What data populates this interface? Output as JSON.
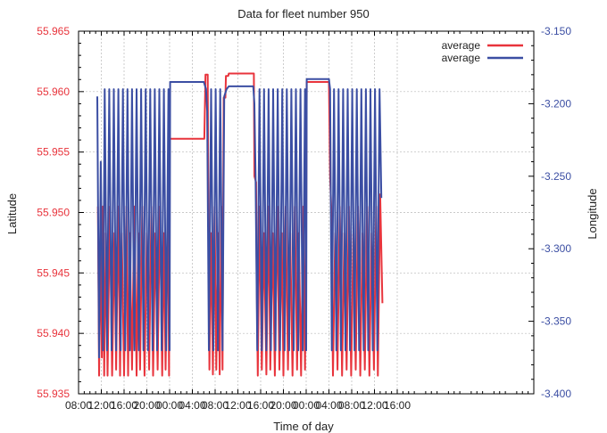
{
  "chart_data": {
    "type": "line",
    "title": "Data for fleet number 950",
    "xlabel": "Time of day",
    "ylabel_left": "Latitude",
    "ylabel_right": "Longitude",
    "x_unit": "hours since first 08:00",
    "x_range": [
      0,
      80
    ],
    "x_ticks": [
      {
        "v": 0,
        "label": "08:00"
      },
      {
        "v": 4,
        "label": "12:00"
      },
      {
        "v": 8,
        "label": "16:00"
      },
      {
        "v": 12,
        "label": "20:00"
      },
      {
        "v": 16,
        "label": "00:00"
      },
      {
        "v": 20,
        "label": "04:00"
      },
      {
        "v": 24,
        "label": "08:00"
      },
      {
        "v": 28,
        "label": "12:00"
      },
      {
        "v": 32,
        "label": "16:00"
      },
      {
        "v": 36,
        "label": "20:00"
      },
      {
        "v": 40,
        "label": "00:00"
      },
      {
        "v": 44,
        "label": "04:00"
      },
      {
        "v": 48,
        "label": "08:00"
      },
      {
        "v": 52,
        "label": "12:00"
      },
      {
        "v": 56,
        "label": "16:00"
      }
    ],
    "y_left_range": [
      55.935,
      55.965
    ],
    "y_left_ticks": [
      "55.935",
      "55.940",
      "55.945",
      "55.950",
      "55.955",
      "55.960",
      "55.965"
    ],
    "y_right_range": [
      -3.4,
      -3.15
    ],
    "y_right_ticks": [
      "-3.400",
      "-3.350",
      "-3.300",
      "-3.250",
      "-3.200",
      "-3.150"
    ],
    "grid": true,
    "legend_position": "top-right",
    "colors": {
      "latitude": "#e8343c",
      "longitude": "#3b4ea3",
      "axis_left": "#e8343c",
      "axis_right": "#3b4ea3"
    },
    "series": [
      {
        "name": "average",
        "axis": "left",
        "color": "#e8343c",
        "points": [
          [
            3.4,
            55.9505
          ],
          [
            3.6,
            55.9365
          ],
          [
            3.9,
            55.9483
          ],
          [
            4.1,
            55.938
          ],
          [
            4.3,
            55.9505
          ],
          [
            4.5,
            55.9365
          ],
          [
            4.8,
            55.9483
          ],
          [
            5.1,
            55.9365
          ],
          [
            5.5,
            55.9505
          ],
          [
            5.9,
            55.9365
          ],
          [
            6.3,
            55.9483
          ],
          [
            6.6,
            55.937
          ],
          [
            7.0,
            55.9505
          ],
          [
            7.3,
            55.9365
          ],
          [
            7.6,
            55.9483
          ],
          [
            8.0,
            55.9365
          ],
          [
            8.4,
            55.9505
          ],
          [
            8.7,
            55.9365
          ],
          [
            9.0,
            55.9483
          ],
          [
            9.4,
            55.937
          ],
          [
            9.8,
            55.9505
          ],
          [
            10.2,
            55.9365
          ],
          [
            10.5,
            55.9483
          ],
          [
            10.8,
            55.937
          ],
          [
            11.2,
            55.9505
          ],
          [
            11.6,
            55.9365
          ],
          [
            12.0,
            55.9483
          ],
          [
            12.4,
            55.937
          ],
          [
            12.8,
            55.9505
          ],
          [
            13.1,
            55.9365
          ],
          [
            13.5,
            55.9483
          ],
          [
            13.9,
            55.937
          ],
          [
            14.3,
            55.9505
          ],
          [
            14.7,
            55.9365
          ],
          [
            15.0,
            55.9483
          ],
          [
            15.3,
            55.937
          ],
          [
            15.7,
            55.9505
          ],
          [
            15.9,
            55.9365
          ],
          [
            16.0,
            55.9561
          ],
          [
            22.1,
            55.9561
          ],
          [
            22.3,
            55.9614
          ],
          [
            22.7,
            55.9614
          ],
          [
            22.8,
            55.9497
          ],
          [
            23.0,
            55.937
          ],
          [
            23.3,
            55.9483
          ],
          [
            23.6,
            55.9366
          ],
          [
            23.9,
            55.9505
          ],
          [
            24.2,
            55.937
          ],
          [
            24.5,
            55.9483
          ],
          [
            24.8,
            55.9366
          ],
          [
            25.1,
            55.9505
          ],
          [
            25.3,
            55.937
          ],
          [
            25.5,
            55.9595
          ],
          [
            25.8,
            55.9595
          ],
          [
            25.9,
            55.9613
          ],
          [
            26.3,
            55.9613
          ],
          [
            26.4,
            55.9615
          ],
          [
            30.8,
            55.9615
          ],
          [
            30.9,
            55.953
          ],
          [
            31.2,
            55.9525
          ],
          [
            31.3,
            55.945
          ],
          [
            31.5,
            55.9365
          ],
          [
            31.8,
            55.9505
          ],
          [
            32.2,
            55.937
          ],
          [
            32.6,
            55.9483
          ],
          [
            33.0,
            55.9366
          ],
          [
            33.4,
            55.9505
          ],
          [
            33.7,
            55.937
          ],
          [
            34.1,
            55.9483
          ],
          [
            34.5,
            55.9365
          ],
          [
            34.9,
            55.9505
          ],
          [
            35.3,
            55.937
          ],
          [
            35.7,
            55.9483
          ],
          [
            36.0,
            55.9365
          ],
          [
            36.4,
            55.9505
          ],
          [
            36.8,
            55.937
          ],
          [
            37.2,
            55.9483
          ],
          [
            37.6,
            55.9365
          ],
          [
            38.0,
            55.9505
          ],
          [
            38.4,
            55.937
          ],
          [
            38.7,
            55.9483
          ],
          [
            39.1,
            55.9365
          ],
          [
            39.5,
            55.9505
          ],
          [
            39.8,
            55.937
          ],
          [
            40.0,
            55.9495
          ],
          [
            40.1,
            55.9608
          ],
          [
            44.0,
            55.9608
          ],
          [
            44.2,
            55.953
          ],
          [
            44.4,
            55.9505
          ],
          [
            44.7,
            55.9365
          ],
          [
            45.1,
            55.9483
          ],
          [
            45.5,
            55.937
          ],
          [
            45.9,
            55.9505
          ],
          [
            46.3,
            55.9365
          ],
          [
            46.7,
            55.9483
          ],
          [
            47.1,
            55.937
          ],
          [
            47.5,
            55.9505
          ],
          [
            47.9,
            55.9365
          ],
          [
            48.3,
            55.9483
          ],
          [
            48.7,
            55.937
          ],
          [
            49.1,
            55.9505
          ],
          [
            49.5,
            55.9365
          ],
          [
            49.9,
            55.9483
          ],
          [
            50.3,
            55.937
          ],
          [
            50.7,
            55.9505
          ],
          [
            51.1,
            55.9365
          ],
          [
            51.5,
            55.9483
          ],
          [
            51.9,
            55.937
          ],
          [
            52.3,
            55.9505
          ],
          [
            52.6,
            55.9365
          ],
          [
            53.0,
            55.9515
          ],
          [
            53.4,
            55.9425
          ]
        ]
      },
      {
        "name": "average",
        "axis": "right",
        "color": "#3b4ea3",
        "points": [
          [
            3.3,
            -3.195
          ],
          [
            3.6,
            -3.375
          ],
          [
            3.9,
            -3.24
          ],
          [
            4.3,
            -3.37
          ],
          [
            4.6,
            -3.19
          ],
          [
            5.0,
            -3.37
          ],
          [
            5.4,
            -3.19
          ],
          [
            5.8,
            -3.37
          ],
          [
            6.2,
            -3.19
          ],
          [
            6.6,
            -3.37
          ],
          [
            7.0,
            -3.19
          ],
          [
            7.4,
            -3.37
          ],
          [
            7.8,
            -3.19
          ],
          [
            8.2,
            -3.37
          ],
          [
            8.6,
            -3.19
          ],
          [
            9.0,
            -3.37
          ],
          [
            9.4,
            -3.19
          ],
          [
            9.8,
            -3.37
          ],
          [
            10.2,
            -3.19
          ],
          [
            10.6,
            -3.37
          ],
          [
            11.0,
            -3.19
          ],
          [
            11.4,
            -3.37
          ],
          [
            11.8,
            -3.19
          ],
          [
            12.2,
            -3.37
          ],
          [
            12.6,
            -3.19
          ],
          [
            13.0,
            -3.37
          ],
          [
            13.4,
            -3.19
          ],
          [
            13.8,
            -3.37
          ],
          [
            14.2,
            -3.19
          ],
          [
            14.6,
            -3.37
          ],
          [
            15.0,
            -3.19
          ],
          [
            15.4,
            -3.37
          ],
          [
            15.8,
            -3.19
          ],
          [
            16.0,
            -3.37
          ],
          [
            16.1,
            -3.185
          ],
          [
            22.0,
            -3.185
          ],
          [
            22.4,
            -3.19
          ],
          [
            22.6,
            -3.205
          ],
          [
            22.9,
            -3.37
          ],
          [
            23.3,
            -3.19
          ],
          [
            23.7,
            -3.37
          ],
          [
            24.1,
            -3.19
          ],
          [
            24.5,
            -3.37
          ],
          [
            24.9,
            -3.19
          ],
          [
            25.3,
            -3.37
          ],
          [
            25.6,
            -3.195
          ],
          [
            26.0,
            -3.19
          ],
          [
            26.4,
            -3.188
          ],
          [
            30.7,
            -3.188
          ],
          [
            30.9,
            -3.2
          ],
          [
            31.1,
            -3.25
          ],
          [
            31.4,
            -3.37
          ],
          [
            31.8,
            -3.19
          ],
          [
            32.2,
            -3.37
          ],
          [
            32.6,
            -3.19
          ],
          [
            33.0,
            -3.37
          ],
          [
            33.4,
            -3.19
          ],
          [
            33.8,
            -3.37
          ],
          [
            34.2,
            -3.19
          ],
          [
            34.6,
            -3.37
          ],
          [
            35.0,
            -3.19
          ],
          [
            35.4,
            -3.37
          ],
          [
            35.8,
            -3.19
          ],
          [
            36.2,
            -3.37
          ],
          [
            36.6,
            -3.19
          ],
          [
            37.0,
            -3.37
          ],
          [
            37.4,
            -3.19
          ],
          [
            37.8,
            -3.37
          ],
          [
            38.2,
            -3.19
          ],
          [
            38.6,
            -3.37
          ],
          [
            39.0,
            -3.19
          ],
          [
            39.4,
            -3.37
          ],
          [
            39.8,
            -3.19
          ],
          [
            40.0,
            -3.37
          ],
          [
            40.1,
            -3.183
          ],
          [
            44.0,
            -3.183
          ],
          [
            44.2,
            -3.19
          ],
          [
            44.5,
            -3.37
          ],
          [
            44.9,
            -3.19
          ],
          [
            45.3,
            -3.37
          ],
          [
            45.7,
            -3.19
          ],
          [
            46.1,
            -3.37
          ],
          [
            46.5,
            -3.19
          ],
          [
            46.9,
            -3.37
          ],
          [
            47.3,
            -3.19
          ],
          [
            47.7,
            -3.37
          ],
          [
            48.1,
            -3.19
          ],
          [
            48.5,
            -3.37
          ],
          [
            48.9,
            -3.19
          ],
          [
            49.3,
            -3.37
          ],
          [
            49.7,
            -3.19
          ],
          [
            50.1,
            -3.37
          ],
          [
            50.5,
            -3.19
          ],
          [
            50.9,
            -3.37
          ],
          [
            51.3,
            -3.19
          ],
          [
            51.7,
            -3.37
          ],
          [
            52.1,
            -3.19
          ],
          [
            52.5,
            -3.37
          ],
          [
            52.9,
            -3.19
          ],
          [
            53.2,
            -3.265
          ]
        ]
      }
    ]
  }
}
